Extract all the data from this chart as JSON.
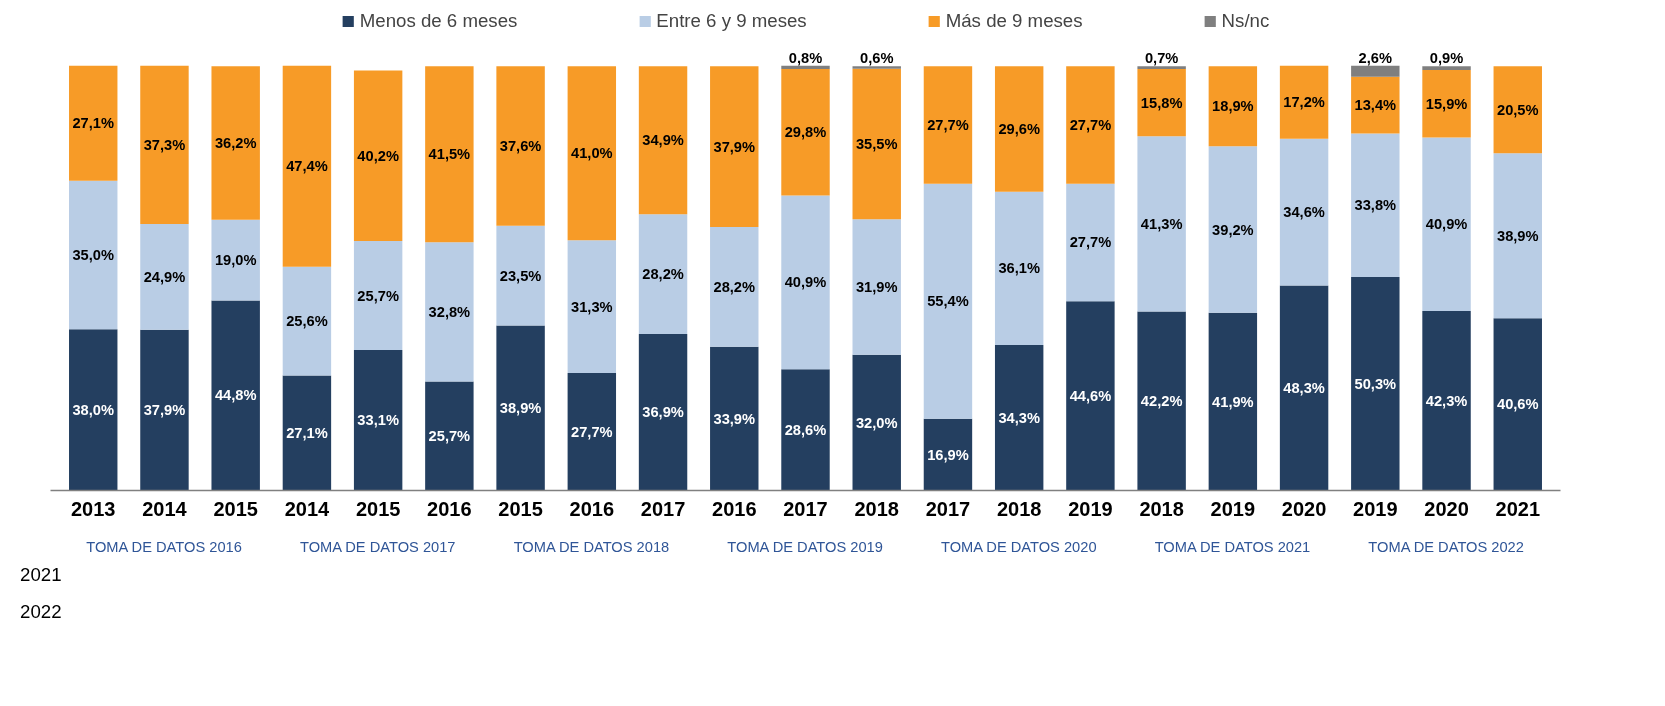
{
  "chart_data": {
    "type": "bar",
    "stacked": true,
    "legend": "top",
    "grid": false,
    "categories": [
      "2013",
      "2014",
      "2015",
      "2014",
      "2015",
      "2016",
      "2015",
      "2016",
      "2017",
      "2016",
      "2017",
      "2018",
      "2017",
      "2018",
      "2019",
      "2018",
      "2019",
      "2020",
      "2019",
      "2020",
      "2021"
    ],
    "series": [
      {
        "name": "Menos de 6 meses",
        "color": "#243f60",
        "values": [
          38.0,
          37.9,
          44.8,
          27.1,
          33.1,
          25.7,
          38.9,
          27.7,
          36.9,
          33.9,
          28.6,
          32.0,
          16.9,
          34.3,
          44.6,
          42.2,
          41.9,
          48.3,
          50.3,
          42.3,
          40.6
        ],
        "value_labels": [
          "38,0%",
          "37,9%",
          "44,8%",
          "27,1%",
          "33,1%",
          "25,7%",
          "38,9%",
          "27,7%",
          "36,9%",
          "33,9%",
          "28,6%",
          "32,0%",
          "16,9%",
          "34,3%",
          "44,6%",
          "42,2%",
          "41,9%",
          "48,3%",
          "50,3%",
          "42,3%",
          "40,6%"
        ]
      },
      {
        "name": "Entre 6 y 9 meses",
        "color": "#b9cde5",
        "values": [
          35.0,
          24.9,
          19.0,
          25.6,
          25.7,
          32.8,
          23.5,
          31.3,
          28.2,
          28.2,
          40.9,
          31.9,
          55.4,
          36.1,
          27.7,
          41.3,
          39.2,
          34.6,
          33.8,
          40.9,
          38.9
        ],
        "value_labels": [
          "35,0%",
          "24,9%",
          "19,0%",
          "25,6%",
          "25,7%",
          "32,8%",
          "23,5%",
          "31,3%",
          "28,2%",
          "28,2%",
          "40,9%",
          "31,9%",
          "55,4%",
          "36,1%",
          "27,7%",
          "41,3%",
          "39,2%",
          "34,6%",
          "33,8%",
          "40,9%",
          "38,9%"
        ]
      },
      {
        "name": "Más de 9 meses",
        "color": "#f79b27",
        "values": [
          27.1,
          37.3,
          36.2,
          47.4,
          40.2,
          41.5,
          37.6,
          41.0,
          34.9,
          37.9,
          29.8,
          35.5,
          27.7,
          29.6,
          27.7,
          15.8,
          18.9,
          17.2,
          13.4,
          15.9,
          20.5
        ],
        "value_labels": [
          "27,1%",
          "37,3%",
          "36,2%",
          "47,4%",
          "40,2%",
          "41,5%",
          "37,6%",
          "41,0%",
          "34,9%",
          "37,9%",
          "29,8%",
          "35,5%",
          "27,7%",
          "29,6%",
          "27,7%",
          "15,8%",
          "18,9%",
          "17,2%",
          "13,4%",
          "15,9%",
          "20,5%"
        ]
      },
      {
        "name": "Ns/nc",
        "color": "#7f7f7f",
        "values": [
          null,
          null,
          null,
          null,
          null,
          null,
          null,
          null,
          null,
          null,
          0.8,
          0.6,
          null,
          null,
          null,
          0.7,
          null,
          null,
          2.6,
          0.9,
          null
        ],
        "value_labels": [
          null,
          null,
          null,
          null,
          null,
          null,
          null,
          null,
          null,
          null,
          "0,8%",
          "0,6%",
          null,
          null,
          null,
          "0,7%",
          null,
          null,
          "2,6%",
          "0,9%",
          null
        ]
      }
    ],
    "annotations": [
      "TOMA DE DATOS 2016",
      "TOMA DE DATOS 2017",
      "TOMA DE DATOS 2018",
      "TOMA DE DATOS 2019",
      "TOMA DE DATOS 2020",
      "TOMA DE DATOS 2021",
      "TOMA DE DATOS 2022",
      "2021",
      "2022"
    ]
  }
}
